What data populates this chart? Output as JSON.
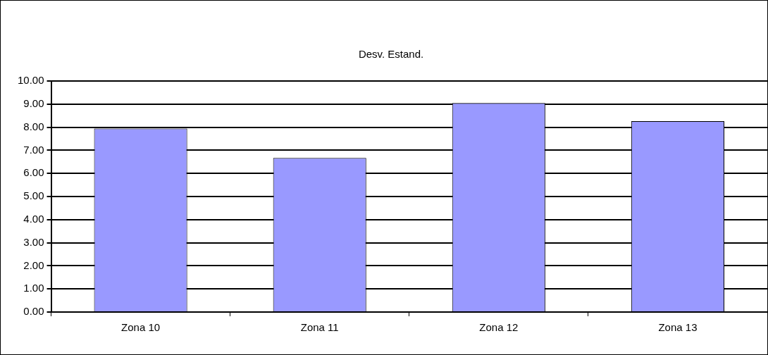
{
  "chart_data": {
    "type": "bar",
    "title": "Desv. Estand.",
    "categories": [
      "Zona 10",
      "Zona 11",
      "Zona 12",
      "Zona 13"
    ],
    "values": [
      7.94,
      6.67,
      9.05,
      8.26
    ],
    "color": "#9999ff",
    "ylim": [
      0,
      10
    ],
    "yticks": [
      {
        "value": 0,
        "label": "0.00"
      },
      {
        "value": 1,
        "label": "1.00"
      },
      {
        "value": 2,
        "label": "2.00"
      },
      {
        "value": 3,
        "label": "3.00"
      },
      {
        "value": 4,
        "label": "4.00"
      },
      {
        "value": 5,
        "label": "5.00"
      },
      {
        "value": 6,
        "label": "6.00"
      },
      {
        "value": 7,
        "label": "7.00"
      },
      {
        "value": 8,
        "label": "8.00"
      },
      {
        "value": 9,
        "label": "9.00"
      },
      {
        "value": 10,
        "label": "10.00"
      }
    ],
    "grid": "y",
    "legend": false
  }
}
